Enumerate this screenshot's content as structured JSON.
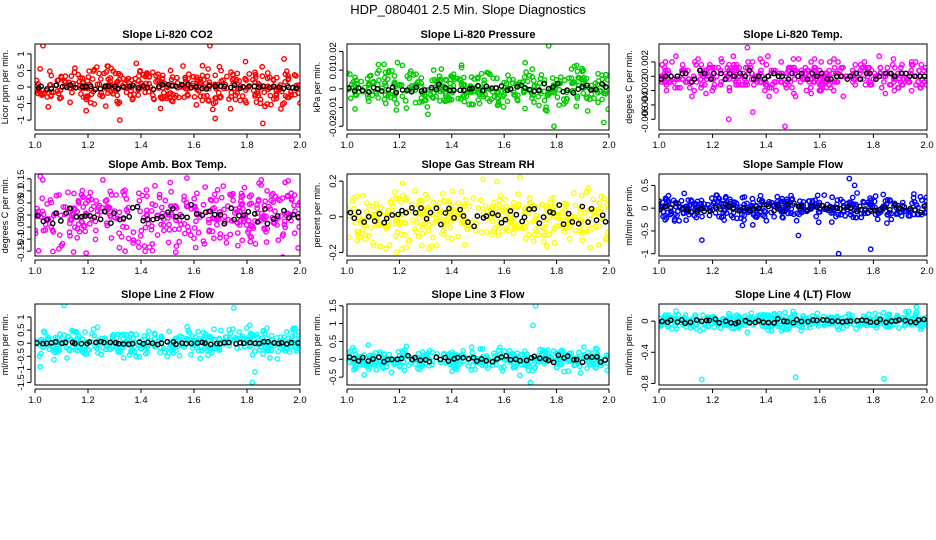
{
  "title": "HDP_080401  2.5 Min. Slope Diagnostics",
  "chart_data": [
    {
      "type": "scatter",
      "title": "Slope Li-820 CO2",
      "ylabel": "Licor ppm per min.",
      "color": "#ff0000",
      "xlim": [
        1.0,
        2.0
      ],
      "ylim": [
        -1.3,
        1.3
      ],
      "xticks": [
        1.0,
        1.2,
        1.4,
        1.6,
        1.8,
        2.0
      ],
      "yticks": [
        -1.0,
        -0.5,
        0.0,
        0.5,
        1.0
      ],
      "spread": 0.32,
      "outliers": [
        [
          1.03,
          1.25
        ],
        [
          1.05,
          -0.6
        ],
        [
          1.32,
          -1.0
        ],
        [
          1.66,
          1.25
        ],
        [
          1.68,
          -0.95
        ],
        [
          1.86,
          -1.1
        ],
        [
          1.94,
          0.85
        ]
      ],
      "black_spread": 0.1
    },
    {
      "type": "scatter",
      "title": "Slope Li-820 Pressure",
      "ylabel": "kPa per min.",
      "color": "#00cc00",
      "xlim": [
        1.0,
        2.0
      ],
      "ylim": [
        -0.022,
        0.024
      ],
      "xticks": [
        1.0,
        1.2,
        1.4,
        1.6,
        1.8,
        2.0
      ],
      "yticks": [
        -0.02,
        -0.01,
        0.0,
        0.01,
        0.02
      ],
      "spread": 0.0055,
      "outliers": [
        [
          1.77,
          0.023
        ],
        [
          1.79,
          -0.02
        ],
        [
          1.98,
          -0.018
        ],
        [
          1.68,
          0.014
        ]
      ],
      "black_spread": 0.003
    },
    {
      "type": "scatter",
      "title": "Slope Li-820 Temp.",
      "ylabel": "degees C per min.",
      "color": "#ff00ff",
      "xlim": [
        1.0,
        2.0
      ],
      "ylim": [
        -0.0075,
        0.0045
      ],
      "xticks": [
        1.0,
        1.2,
        1.4,
        1.6,
        1.8,
        2.0
      ],
      "yticks": [
        -0.006,
        -0.004,
        -0.002,
        0.0,
        0.002
      ],
      "spread": 0.0012,
      "outliers": [
        [
          1.33,
          0.004
        ],
        [
          1.47,
          -0.007
        ],
        [
          1.35,
          -0.005
        ],
        [
          1.26,
          -0.006
        ]
      ],
      "black_spread": 0.0008
    },
    {
      "type": "scatter",
      "title": "Slope Amb. Box Temp.",
      "ylabel": "degrees C per min.",
      "color": "#ff00ff",
      "xlim": [
        1.0,
        2.0
      ],
      "ylim": [
        -0.17,
        0.17
      ],
      "xticks": [
        1.0,
        1.2,
        1.4,
        1.6,
        1.8,
        2.0
      ],
      "yticks": [
        -0.15,
        -0.1,
        -0.05,
        0.0,
        0.05,
        0.1,
        0.15
      ],
      "spread": 0.07,
      "outliers": [
        [
          1.02,
          0.16
        ],
        [
          1.09,
          -0.14
        ],
        [
          1.34,
          -0.15
        ]
      ],
      "black_spread": 0.05
    },
    {
      "type": "scatter",
      "title": "Slope Gas Stream RH",
      "ylabel": "percent per min.",
      "color": "#ffff00",
      "xlim": [
        1.0,
        2.0
      ],
      "ylim": [
        -0.22,
        0.24
      ],
      "xticks": [
        1.0,
        1.2,
        1.4,
        1.6,
        1.8,
        2.0
      ],
      "yticks": [
        -0.2,
        0.0,
        0.2
      ],
      "spread": 0.08,
      "outliers": [
        [
          1.19,
          -0.2
        ],
        [
          1.66,
          0.22
        ],
        [
          1.52,
          0.21
        ]
      ],
      "black_spread": 0.07
    },
    {
      "type": "scatter",
      "title": "Slope Sample Flow",
      "ylabel": "ml/min per min.",
      "color": "#0000ff",
      "xlim": [
        1.0,
        2.0
      ],
      "ylim": [
        -1.05,
        0.75
      ],
      "xticks": [
        1.0,
        1.2,
        1.4,
        1.6,
        1.8,
        2.0
      ],
      "yticks": [
        -1.0,
        -0.5,
        0.0,
        0.5
      ],
      "spread": 0.15,
      "outliers": [
        [
          1.16,
          -0.7
        ],
        [
          1.71,
          0.65
        ],
        [
          1.73,
          0.5
        ],
        [
          1.67,
          -1.0
        ],
        [
          1.79,
          -0.9
        ],
        [
          1.52,
          -0.6
        ]
      ],
      "black_spread": 0.12
    },
    {
      "type": "scatter",
      "title": "Slope Line 2 Flow",
      "ylabel": "ml/min per min.",
      "color": "#00ffff",
      "xlim": [
        1.0,
        2.0
      ],
      "ylim": [
        -1.6,
        1.5
      ],
      "xticks": [
        1.0,
        1.2,
        1.4,
        1.6,
        1.8,
        2.0
      ],
      "yticks": [
        -1.5,
        -1.0,
        -0.5,
        0.0,
        0.5,
        1.0
      ],
      "spread": 0.28,
      "outliers": [
        [
          1.11,
          1.45
        ],
        [
          1.82,
          -1.5
        ],
        [
          1.83,
          -1.1
        ],
        [
          1.75,
          1.35
        ],
        [
          1.02,
          -0.9
        ]
      ],
      "black_spread": 0.07
    },
    {
      "type": "scatter",
      "title": "Slope Line 3 Flow",
      "ylabel": "ml/min per min.",
      "color": "#00ffff",
      "xlim": [
        1.0,
        2.0
      ],
      "ylim": [
        -0.72,
        1.55
      ],
      "xticks": [
        1.0,
        1.2,
        1.4,
        1.6,
        1.8,
        2.0
      ],
      "yticks": [
        -0.5,
        0.0,
        0.5,
        1.0,
        1.5
      ],
      "spread": 0.16,
      "outliers": [
        [
          1.72,
          1.5
        ],
        [
          1.71,
          0.95
        ],
        [
          1.7,
          -0.65
        ],
        [
          1.66,
          -0.45
        ]
      ],
      "black_spread": 0.12
    },
    {
      "type": "scatter",
      "title": "Slope Line 4 (LT) Flow",
      "ylabel": "ml/min per min.",
      "color": "#00ffff",
      "xlim": [
        1.0,
        2.0
      ],
      "ylim": [
        -0.82,
        0.22
      ],
      "xticks": [
        1.0,
        1.2,
        1.4,
        1.6,
        1.8,
        2.0
      ],
      "yticks": [
        -0.8,
        -0.4,
        0.0
      ],
      "spread": 0.055,
      "outliers": [
        [
          1.16,
          -0.75
        ],
        [
          1.51,
          -0.72
        ],
        [
          1.84,
          -0.74
        ],
        [
          1.96,
          0.18
        ]
      ],
      "black_spread": 0.035
    }
  ]
}
